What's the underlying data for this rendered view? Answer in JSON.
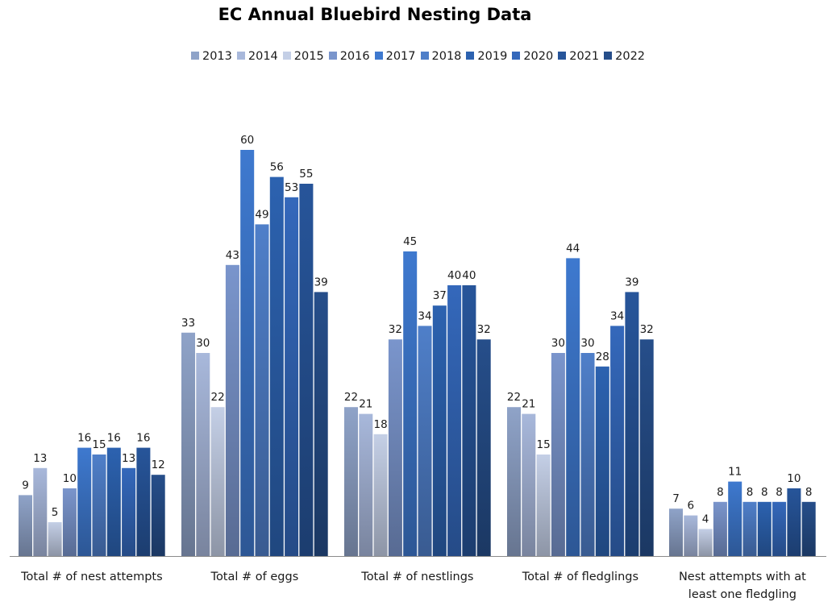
{
  "chart_data": {
    "type": "bar",
    "title": "EC Annual Bluebird Nesting Data",
    "xlabel": "",
    "ylabel": "",
    "ylim": [
      0,
      60
    ],
    "grid": false,
    "legend_position": "top",
    "categories": [
      [
        "Total # of nest attempts"
      ],
      [
        "Total # of eggs"
      ],
      [
        "Total # of nestlings"
      ],
      [
        "Total # of fledglings"
      ],
      [
        "Nest attempts with at",
        "least one fledgling"
      ]
    ],
    "series": [
      {
        "name": "2013",
        "values": [
          9,
          33,
          22,
          22,
          7
        ],
        "color": "#8fa3c8"
      },
      {
        "name": "2014",
        "values": [
          13,
          30,
          21,
          21,
          6
        ],
        "color": "#a8b8db"
      },
      {
        "name": "2015",
        "values": [
          5,
          22,
          18,
          15,
          4
        ],
        "color": "#c4cfe6"
      },
      {
        "name": "2016",
        "values": [
          10,
          43,
          32,
          30,
          8
        ],
        "color": "#7a95cc"
      },
      {
        "name": "2017",
        "values": [
          16,
          60,
          45,
          44,
          11
        ],
        "color": "#3e79cf"
      },
      {
        "name": "2018",
        "values": [
          15,
          49,
          34,
          30,
          8
        ],
        "color": "#4f7fc9"
      },
      {
        "name": "2019",
        "values": [
          16,
          56,
          37,
          28,
          8
        ],
        "color": "#2c62b0"
      },
      {
        "name": "2020",
        "values": [
          13,
          53,
          40,
          34,
          8
        ],
        "color": "#3468bb"
      },
      {
        "name": "2021",
        "values": [
          16,
          55,
          40,
          39,
          10
        ],
        "color": "#27559a"
      },
      {
        "name": "2022",
        "values": [
          12,
          39,
          32,
          32,
          8
        ],
        "color": "#264e8a"
      }
    ]
  }
}
